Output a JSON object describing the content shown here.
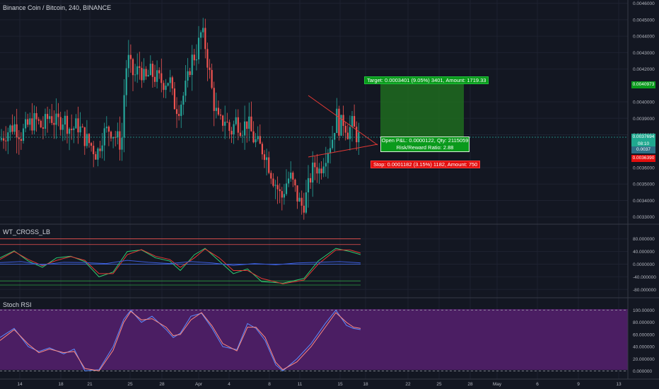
{
  "symbol_title": "Binance Coin / Bitcoin, 240, BINANCE",
  "indicators": {
    "wt_title": "WT_CROSS_LB",
    "stoch_title": "Stoch RSI"
  },
  "colors": {
    "background": "#131722",
    "candle_up": "#26a69a",
    "candle_down": "#ef5350",
    "target_zone": "#1e6b1e",
    "stoch_bg": "#4b1e63",
    "triangle": "#e53935"
  },
  "position_tool": {
    "target_label": "Target: 0.0003401 (9.05%) 3401, Amount: 1719.33",
    "open_pnl_line1": "Open P&L: 0.0000122, Qty: 2115059",
    "open_pnl_line2": "Risk/Reward Ratio: 2.88",
    "stop_label": "Stop: 0.0001182 (3.15%) 1182, Amount: 750"
  },
  "price_tags": {
    "target": "0.0040973",
    "current": "0.0037694",
    "countdown": "08:10",
    "entry": "0.0037",
    "stop": "0.0036390"
  },
  "chart_data": [
    {
      "type": "candlestick",
      "title": "Binance Coin / Bitcoin, 240, BINANCE",
      "x_ticks": [
        "14",
        "18",
        "21",
        "25",
        "28",
        "Apr",
        "4",
        "8",
        "11",
        "15",
        "18",
        "22",
        "25",
        "28",
        "May",
        "6",
        "9",
        "13"
      ],
      "y_ticks": [
        "0.0046000",
        "0.0045000",
        "0.0044000",
        "0.0043000",
        "0.0042000",
        "0.0040000",
        "0.0039000",
        "0.0038000",
        "0.0036000",
        "0.0035000",
        "0.0034000",
        "0.0033000"
      ],
      "ylim": [
        0.00326,
        0.00462
      ],
      "close_path": [
        [
          0,
          0.00377
        ],
        [
          10,
          0.00382
        ],
        [
          20,
          0.00386
        ],
        [
          30,
          0.0038
        ],
        [
          40,
          0.00386
        ],
        [
          50,
          0.00389
        ],
        [
          60,
          0.00384
        ],
        [
          70,
          0.00392
        ],
        [
          80,
          0.00387
        ],
        [
          90,
          0.0039
        ],
        [
          100,
          0.00383
        ],
        [
          110,
          0.00386
        ],
        [
          120,
          0.00378
        ],
        [
          130,
          0.00373
        ],
        [
          137,
          0.00368
        ],
        [
          145,
          0.0038
        ],
        [
          155,
          0.00384
        ],
        [
          165,
          0.00378
        ],
        [
          172,
          0.00374
        ],
        [
          176,
          0.00408
        ],
        [
          180,
          0.00428
        ],
        [
          185,
          0.0042
        ],
        [
          190,
          0.00415
        ],
        [
          198,
          0.00422
        ],
        [
          205,
          0.00412
        ],
        [
          212,
          0.00418
        ],
        [
          220,
          0.00415
        ],
        [
          230,
          0.00412
        ],
        [
          240,
          0.00414
        ],
        [
          245,
          0.004
        ],
        [
          252,
          0.00396
        ],
        [
          258,
          0.00402
        ],
        [
          265,
          0.00412
        ],
        [
          270,
          0.00425
        ],
        [
          278,
          0.0043
        ],
        [
          285,
          0.00443
        ],
        [
          290,
          0.00435
        ],
        [
          296,
          0.00418
        ],
        [
          302,
          0.004
        ],
        [
          310,
          0.00386
        ],
        [
          318,
          0.0039
        ],
        [
          326,
          0.00381
        ],
        [
          334,
          0.00389
        ],
        [
          342,
          0.00384
        ],
        [
          350,
          0.00388
        ],
        [
          358,
          0.00378
        ],
        [
          366,
          0.00373
        ],
        [
          374,
          0.0037
        ],
        [
          380,
          0.00362
        ],
        [
          386,
          0.00354
        ],
        [
          392,
          0.00348
        ],
        [
          398,
          0.00341
        ],
        [
          404,
          0.0035
        ],
        [
          410,
          0.00355
        ],
        [
          416,
          0.00348
        ],
        [
          422,
          0.0034
        ],
        [
          428,
          0.00336
        ],
        [
          434,
          0.00344
        ],
        [
          440,
          0.00356
        ],
        [
          446,
          0.00362
        ],
        [
          452,
          0.00358
        ],
        [
          458,
          0.00366
        ],
        [
          464,
          0.00372
        ],
        [
          470,
          0.00378
        ],
        [
          476,
          0.00392
        ],
        [
          480,
          0.00384
        ],
        [
          486,
          0.00389
        ],
        [
          492,
          0.00382
        ],
        [
          498,
          0.00386
        ],
        [
          504,
          0.0038
        ],
        [
          510,
          0.00377
        ]
      ]
    },
    {
      "type": "line",
      "title": "WT_CROSS_LB",
      "y_ticks": [
        "80.000000",
        "40.000000",
        "0.0000000",
        "-40.000000",
        "-80.000000"
      ],
      "ylim": [
        -95,
        95
      ],
      "levels": [
        80,
        62,
        0,
        -53,
        -66
      ],
      "series": [
        {
          "values": [
            [
              0,
              20
            ],
            [
              20,
              42
            ],
            [
              40,
              10
            ],
            [
              60,
              -10
            ],
            [
              80,
              20
            ],
            [
              100,
              25
            ],
            [
              120,
              8
            ],
            [
              140,
              -40
            ],
            [
              160,
              -25
            ],
            [
              180,
              40
            ],
            [
              200,
              45
            ],
            [
              220,
              20
            ],
            [
              240,
              10
            ],
            [
              255,
              -20
            ],
            [
              275,
              30
            ],
            [
              290,
              50
            ],
            [
              310,
              10
            ],
            [
              330,
              -30
            ],
            [
              350,
              -15
            ],
            [
              370,
              -55
            ],
            [
              400,
              -60
            ],
            [
              430,
              -45
            ],
            [
              450,
              10
            ],
            [
              475,
              50
            ],
            [
              495,
              40
            ],
            [
              510,
              30
            ]
          ]
        },
        {
          "values": [
            [
              0,
              15
            ],
            [
              20,
              40
            ],
            [
              40,
              15
            ],
            [
              60,
              -5
            ],
            [
              80,
              12
            ],
            [
              100,
              24
            ],
            [
              120,
              12
            ],
            [
              140,
              -30
            ],
            [
              160,
              -30
            ],
            [
              180,
              30
            ],
            [
              200,
              46
            ],
            [
              220,
              25
            ],
            [
              240,
              15
            ],
            [
              255,
              -10
            ],
            [
              275,
              20
            ],
            [
              290,
              48
            ],
            [
              310,
              20
            ],
            [
              330,
              -20
            ],
            [
              350,
              -20
            ],
            [
              370,
              -45
            ],
            [
              400,
              -62
            ],
            [
              430,
              -50
            ],
            [
              450,
              0
            ],
            [
              475,
              45
            ],
            [
              495,
              45
            ],
            [
              510,
              35
            ]
          ]
        },
        {
          "values": [
            [
              0,
              5
            ],
            [
              30,
              8
            ],
            [
              60,
              -2
            ],
            [
              90,
              6
            ],
            [
              120,
              5
            ],
            [
              150,
              2
            ],
            [
              180,
              12
            ],
            [
              210,
              6
            ],
            [
              240,
              2
            ],
            [
              270,
              8
            ],
            [
              300,
              4
            ],
            [
              330,
              -4
            ],
            [
              360,
              2
            ],
            [
              390,
              -2
            ],
            [
              420,
              4
            ],
            [
              450,
              6
            ],
            [
              480,
              8
            ],
            [
              510,
              4
            ]
          ]
        }
      ]
    },
    {
      "type": "line",
      "title": "Stoch RSI",
      "y_ticks": [
        "100.00000",
        "80.000000",
        "60.000000",
        "40.000000",
        "20.000000",
        "0.000000"
      ],
      "ylim": [
        -3,
        103
      ],
      "levels": [
        100,
        0
      ],
      "series": [
        {
          "values": [
            [
              0,
              55
            ],
            [
              20,
              70
            ],
            [
              40,
              40
            ],
            [
              55,
              32
            ],
            [
              70,
              38
            ],
            [
              90,
              28
            ],
            [
              105,
              36
            ],
            [
              120,
              0
            ],
            [
              140,
              2
            ],
            [
              160,
              40
            ],
            [
              175,
              85
            ],
            [
              185,
              100
            ],
            [
              200,
              80
            ],
            [
              215,
              90
            ],
            [
              235,
              68
            ],
            [
              245,
              55
            ],
            [
              255,
              62
            ],
            [
              270,
              90
            ],
            [
              285,
              95
            ],
            [
              300,
              70
            ],
            [
              315,
              40
            ],
            [
              335,
              35
            ],
            [
              350,
              78
            ],
            [
              362,
              70
            ],
            [
              375,
              50
            ],
            [
              390,
              10
            ],
            [
              400,
              0
            ],
            [
              420,
              20
            ],
            [
              440,
              45
            ],
            [
              460,
              78
            ],
            [
              475,
              100
            ],
            [
              490,
              75
            ],
            [
              500,
              70
            ],
            [
              510,
              68
            ]
          ]
        },
        {
          "values": [
            [
              0,
              50
            ],
            [
              20,
              68
            ],
            [
              40,
              44
            ],
            [
              55,
              30
            ],
            [
              70,
              36
            ],
            [
              90,
              30
            ],
            [
              105,
              32
            ],
            [
              120,
              4
            ],
            [
              140,
              0
            ],
            [
              160,
              34
            ],
            [
              175,
              80
            ],
            [
              185,
              98
            ],
            [
              200,
              84
            ],
            [
              215,
              86
            ],
            [
              235,
              72
            ],
            [
              245,
              58
            ],
            [
              255,
              60
            ],
            [
              270,
              84
            ],
            [
              285,
              96
            ],
            [
              300,
              74
            ],
            [
              315,
              45
            ],
            [
              335,
              33
            ],
            [
              350,
              72
            ],
            [
              362,
              72
            ],
            [
              375,
              55
            ],
            [
              390,
              14
            ],
            [
              400,
              2
            ],
            [
              420,
              15
            ],
            [
              440,
              40
            ],
            [
              460,
              72
            ],
            [
              475,
              96
            ],
            [
              490,
              80
            ],
            [
              500,
              72
            ],
            [
              510,
              70
            ]
          ]
        }
      ]
    }
  ]
}
